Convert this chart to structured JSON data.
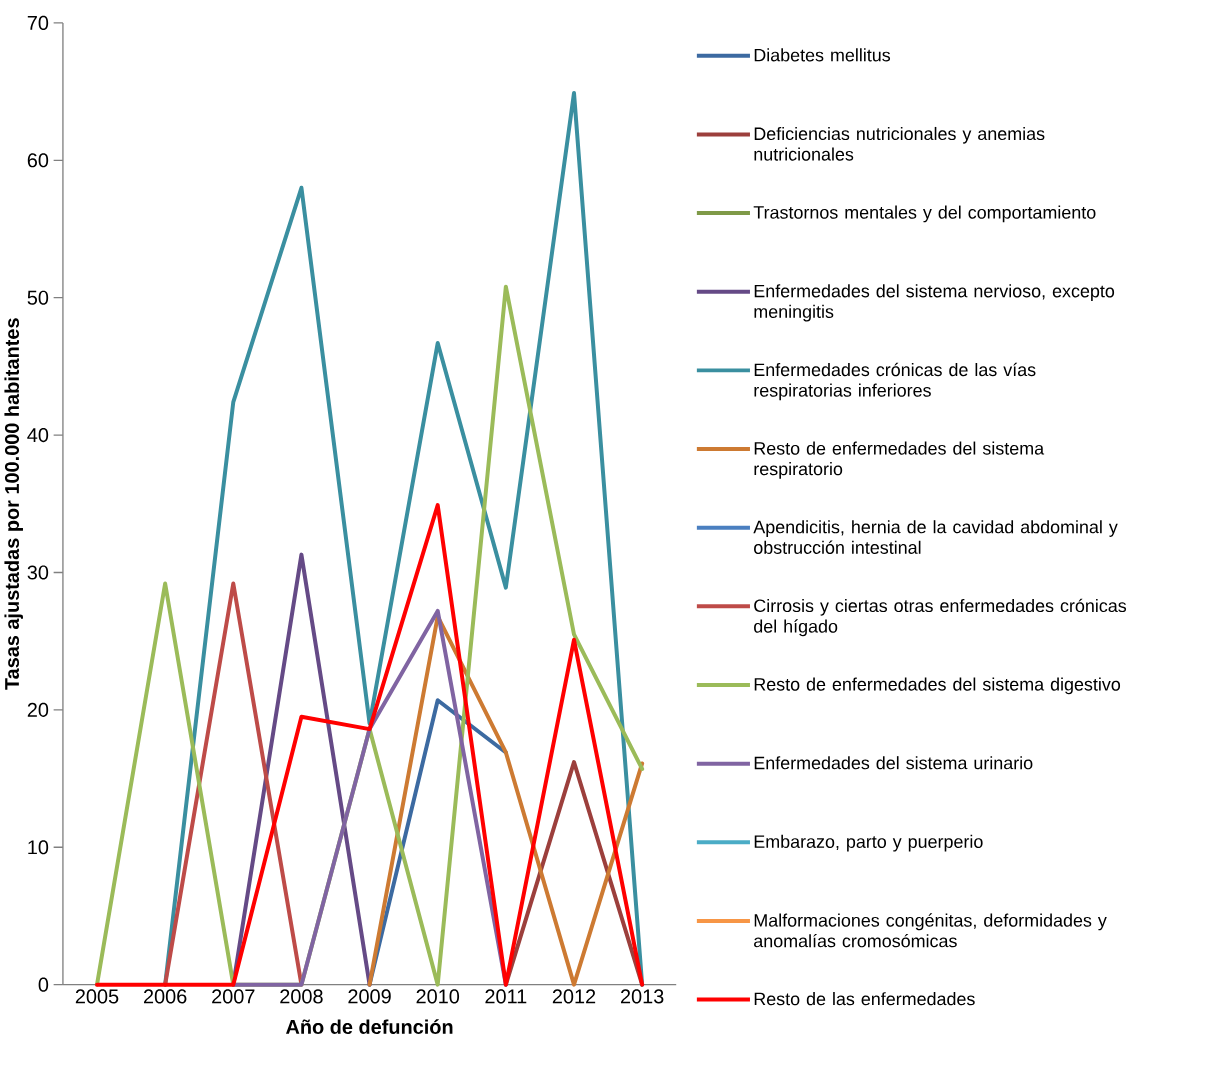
{
  "chart_data": {
    "type": "line",
    "xlabel": "Año de defunción",
    "ylabel": "Tasas ajustadas por 100.000 habitantes",
    "categories": [
      "2005",
      "2006",
      "2007",
      "2008",
      "2009",
      "2010",
      "2011",
      "2012",
      "2013"
    ],
    "ylim": [
      0,
      70
    ],
    "yticks": [
      0,
      10,
      20,
      30,
      40,
      50,
      60,
      70
    ],
    "legend": "right",
    "marker": "none",
    "line_style": "solid",
    "series": [
      {
        "name": "Diabetes mellitus",
        "color": "#3c6aa1",
        "values": [
          null,
          null,
          null,
          null,
          0,
          20.7,
          16.9,
          null,
          null
        ]
      },
      {
        "name": "Deficiencias nutricionales y anemias nutricionales",
        "color": "#9c3f3c",
        "values": [
          null,
          null,
          null,
          null,
          null,
          null,
          0,
          16.2,
          0
        ]
      },
      {
        "name": "Trastornos mentales y del comportamiento",
        "color": "#7f9a48",
        "values": [
          null,
          null,
          null,
          null,
          null,
          null,
          null,
          null,
          null
        ]
      },
      {
        "name": "Enfermedades del sistema nervioso, excepto meningitis",
        "color": "#654a86",
        "values": [
          null,
          null,
          0,
          31.3,
          0,
          null,
          null,
          null,
          null
        ]
      },
      {
        "name": "Enfermedades crónicas de las vías respiratorias inferiores",
        "color": "#3a8fa0",
        "values": [
          null,
          0,
          42.4,
          58,
          19,
          46.7,
          28.9,
          64.9,
          0
        ]
      },
      {
        "name": "Resto de enfermedades del sistema respiratorio",
        "color": "#cd7a32",
        "values": [
          null,
          null,
          null,
          null,
          0,
          26.8,
          16.9,
          0,
          16.1
        ]
      },
      {
        "name": "Apendicitis, hernia de la cavidad abdominal y obstrucción intestinal",
        "color": "#4a7fc0",
        "values": [
          null,
          null,
          null,
          null,
          null,
          null,
          null,
          null,
          null
        ]
      },
      {
        "name": "Cirrosis y ciertas otras enfermedades crónicas del hígado",
        "color": "#be4b48",
        "values": [
          null,
          0,
          29.2,
          0,
          null,
          null,
          null,
          null,
          null
        ]
      },
      {
        "name": "Resto de enfermedades del sistema digestivo",
        "color": "#9bbb59",
        "values": [
          0,
          29.2,
          0,
          0,
          18.6,
          0,
          50.8,
          25.5,
          15.7
        ]
      },
      {
        "name": "Enfermedades del sistema urinario",
        "color": "#8064a2",
        "values": [
          null,
          null,
          0,
          0,
          18.6,
          27.2,
          0,
          null,
          null
        ]
      },
      {
        "name": "Embarazo, parto y puerperio",
        "color": "#4bacc6",
        "values": [
          null,
          null,
          null,
          null,
          null,
          null,
          null,
          null,
          null
        ]
      },
      {
        "name": "Malformaciones congénitas, deformidades y anomalías cromosómicas",
        "color": "#f79646",
        "values": [
          null,
          null,
          null,
          null,
          null,
          null,
          null,
          null,
          null
        ]
      },
      {
        "name": "Resto de las enfermedades",
        "color": "#ff0000",
        "values": [
          0,
          0,
          0,
          19.5,
          18.6,
          34.9,
          0,
          25.1,
          0
        ]
      }
    ]
  }
}
